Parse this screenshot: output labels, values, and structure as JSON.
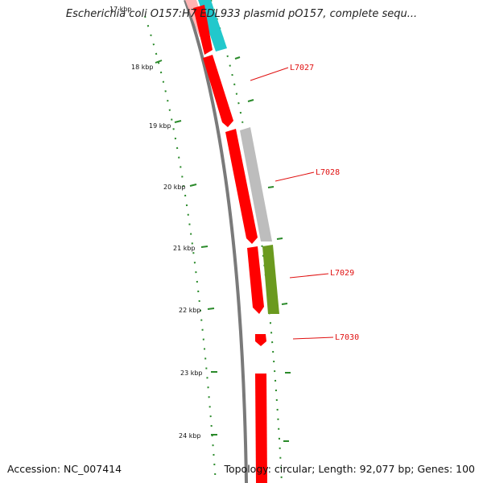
{
  "title": "Escherichia coli O157:H7 EDL933 plasmid pO157, complete sequ...",
  "footer": {
    "accession": "Accession: NC_007414",
    "summary": "Topology: circular; Length: 92,077 bp; Genes: 100"
  },
  "colors": {
    "backbone": "#7a7a7a",
    "tick": "#2a8a2a",
    "gene_red": "#ff0000",
    "gene_cyan": "#22c8cc",
    "gene_gray": "#bdbdbd",
    "gene_green": "#6b9a1f",
    "gene_pink": "#ffb3b3",
    "label": "#e01010"
  },
  "scale": {
    "labels": [
      "17 kbp",
      "18 kbp",
      "19 kbp",
      "20 kbp",
      "21 kbp",
      "22 kbp",
      "23 kbp",
      "24 kbp"
    ]
  },
  "gene_labels": [
    "L7027",
    "L7028",
    "L7029",
    "L7030"
  ]
}
